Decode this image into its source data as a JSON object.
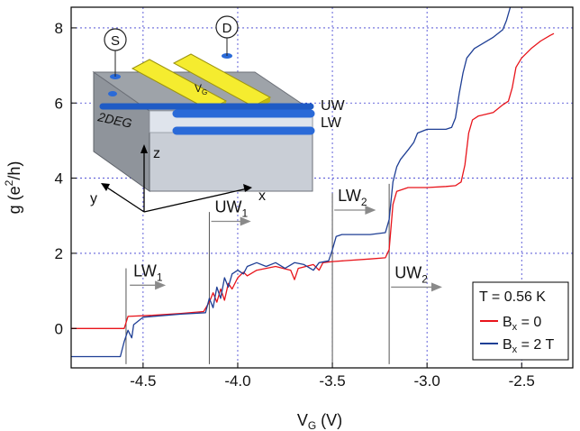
{
  "chart_data": {
    "type": "line",
    "xlabel_main": "V",
    "xlabel_sub": "G",
    "xlabel_unit": " (V)",
    "ylabel_pre": "g (e",
    "ylabel_sup": "2",
    "ylabel_post": "/h)",
    "xlim": [
      -4.88,
      -2.23
    ],
    "ylim": [
      -1.05,
      8.55
    ],
    "x_ticks": [
      -4.5,
      -4.0,
      -3.5,
      -3.0,
      -2.5
    ],
    "x_tick_labels": [
      "-4.5",
      "-4.0",
      "-3.5",
      "-3.0",
      "-2.5"
    ],
    "y_ticks": [
      0,
      2,
      4,
      6,
      8
    ],
    "y_tick_labels": [
      "0",
      "2",
      "4",
      "6",
      "8"
    ],
    "grid_vertical": [
      -4.5,
      -4.0,
      -3.5,
      -3.0,
      -2.5
    ],
    "grid_horizontal": [
      2,
      4,
      6,
      8
    ],
    "grid_style": "dotted",
    "series": [
      {
        "name": "B_x = 0",
        "color": "#e8141b",
        "points": [
          [
            -4.88,
            0.0
          ],
          [
            -4.6,
            0.0
          ],
          [
            -4.58,
            0.32
          ],
          [
            -4.45,
            0.35
          ],
          [
            -4.3,
            0.4
          ],
          [
            -4.18,
            0.45
          ],
          [
            -4.15,
            0.7
          ],
          [
            -4.13,
            0.95
          ],
          [
            -4.11,
            0.7
          ],
          [
            -4.09,
            1.05
          ],
          [
            -4.07,
            0.75
          ],
          [
            -4.05,
            1.2
          ],
          [
            -4.03,
            1.05
          ],
          [
            -4.0,
            1.35
          ],
          [
            -3.97,
            1.5
          ],
          [
            -3.95,
            1.4
          ],
          [
            -3.9,
            1.55
          ],
          [
            -3.85,
            1.6
          ],
          [
            -3.8,
            1.65
          ],
          [
            -3.72,
            1.55
          ],
          [
            -3.7,
            1.3
          ],
          [
            -3.68,
            1.6
          ],
          [
            -3.6,
            1.7
          ],
          [
            -3.57,
            1.55
          ],
          [
            -3.55,
            1.75
          ],
          [
            -3.5,
            1.78
          ],
          [
            -3.3,
            1.85
          ],
          [
            -3.22,
            1.88
          ],
          [
            -3.2,
            2.1
          ],
          [
            -3.18,
            3.3
          ],
          [
            -3.16,
            3.65
          ],
          [
            -3.1,
            3.75
          ],
          [
            -3.0,
            3.75
          ],
          [
            -2.9,
            3.78
          ],
          [
            -2.85,
            3.8
          ],
          [
            -2.82,
            3.9
          ],
          [
            -2.8,
            4.35
          ],
          [
            -2.78,
            5.2
          ],
          [
            -2.76,
            5.55
          ],
          [
            -2.73,
            5.65
          ],
          [
            -2.65,
            5.75
          ],
          [
            -2.6,
            5.95
          ],
          [
            -2.57,
            6.05
          ],
          [
            -2.55,
            6.4
          ],
          [
            -2.53,
            6.95
          ],
          [
            -2.5,
            7.2
          ],
          [
            -2.45,
            7.45
          ],
          [
            -2.4,
            7.65
          ],
          [
            -2.35,
            7.8
          ],
          [
            -2.33,
            7.85
          ]
        ]
      },
      {
        "name": "B_x = 2 T",
        "color": "#1f3f95",
        "points": [
          [
            -4.88,
            -0.75
          ],
          [
            -4.62,
            -0.75
          ],
          [
            -4.6,
            -0.35
          ],
          [
            -4.58,
            -0.05
          ],
          [
            -4.56,
            -0.25
          ],
          [
            -4.55,
            0.1
          ],
          [
            -4.5,
            0.3
          ],
          [
            -4.3,
            0.38
          ],
          [
            -4.17,
            0.42
          ],
          [
            -4.15,
            0.8
          ],
          [
            -4.13,
            0.55
          ],
          [
            -4.11,
            1.1
          ],
          [
            -4.09,
            0.8
          ],
          [
            -4.07,
            1.35
          ],
          [
            -4.05,
            1.1
          ],
          [
            -4.03,
            1.45
          ],
          [
            -4.0,
            1.55
          ],
          [
            -3.97,
            1.45
          ],
          [
            -3.95,
            1.65
          ],
          [
            -3.9,
            1.75
          ],
          [
            -3.85,
            1.65
          ],
          [
            -3.8,
            1.75
          ],
          [
            -3.75,
            1.6
          ],
          [
            -3.7,
            1.75
          ],
          [
            -3.65,
            1.7
          ],
          [
            -3.6,
            1.55
          ],
          [
            -3.57,
            1.75
          ],
          [
            -3.52,
            1.8
          ],
          [
            -3.5,
            2.1
          ],
          [
            -3.48,
            2.45
          ],
          [
            -3.45,
            2.5
          ],
          [
            -3.3,
            2.5
          ],
          [
            -3.22,
            2.55
          ],
          [
            -3.2,
            2.9
          ],
          [
            -3.18,
            3.9
          ],
          [
            -3.16,
            4.3
          ],
          [
            -3.14,
            4.5
          ],
          [
            -3.1,
            4.75
          ],
          [
            -3.07,
            4.95
          ],
          [
            -3.05,
            5.2
          ],
          [
            -3.0,
            5.3
          ],
          [
            -2.95,
            5.3
          ],
          [
            -2.9,
            5.3
          ],
          [
            -2.87,
            5.35
          ],
          [
            -2.85,
            5.6
          ],
          [
            -2.83,
            6.25
          ],
          [
            -2.81,
            6.8
          ],
          [
            -2.79,
            7.2
          ],
          [
            -2.75,
            7.45
          ],
          [
            -2.7,
            7.6
          ],
          [
            -2.65,
            7.75
          ],
          [
            -2.6,
            7.95
          ],
          [
            -2.58,
            8.2
          ],
          [
            -2.56,
            8.55
          ]
        ]
      }
    ],
    "legend": {
      "position": "bottom-right",
      "title": "T = 0.56 K",
      "entries": [
        {
          "main": "B",
          "sub": "x",
          "rest": " = 0",
          "color": "#e8141b"
        },
        {
          "main": "B",
          "sub": "x",
          "rest": " = 2 T",
          "color": "#1f3f95"
        }
      ]
    },
    "annotations": [
      {
        "main": "LW",
        "sub": "1",
        "x": -4.57,
        "y": 1.15,
        "arrow_to": -4.38
      },
      {
        "main": "UW",
        "sub": "1",
        "x": -4.14,
        "y": 2.85,
        "arrow_to": -3.93
      },
      {
        "main": "LW",
        "sub": "2",
        "x": -3.49,
        "y": 3.15,
        "arrow_to": -3.27
      },
      {
        "main": "UW",
        "sub": "2",
        "x": -3.19,
        "y": 1.1,
        "arrow_to": -2.92
      }
    ],
    "marker_lines": [
      -4.59,
      -4.15,
      -3.5,
      -3.2
    ]
  },
  "inset": {
    "source_label": "S",
    "drain_label": "D",
    "gate_label": "V",
    "gate_sub": "G",
    "twodeg_label": "2DEG",
    "uw_label": "UW",
    "lw_label": "LW",
    "z_label": "z",
    "x_label": "x",
    "y_label": "y"
  }
}
